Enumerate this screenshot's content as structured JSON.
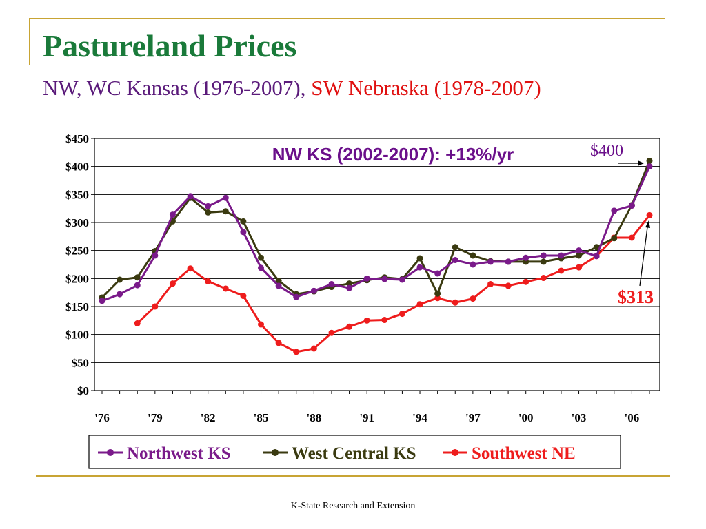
{
  "slide": {
    "title": "Pastureland Prices",
    "subtitle_part1": "NW, WC Kansas (1976-2007),",
    "subtitle_part2": "SW Nebraska (1978-2007)",
    "footer": "K-State Research and Extension"
  },
  "colors": {
    "title": "#1a7a3a",
    "northwest": "#7a1a8a",
    "westcentral": "#3a3a10",
    "southwest": "#ee1c1c",
    "annotation": "#6a0f8a",
    "accent": "#c8a434"
  },
  "chart_data": {
    "type": "line",
    "x": [
      1976,
      1977,
      1978,
      1979,
      1980,
      1981,
      1982,
      1983,
      1984,
      1985,
      1986,
      1987,
      1988,
      1989,
      1990,
      1991,
      1992,
      1993,
      1994,
      1995,
      1996,
      1997,
      1998,
      1999,
      2000,
      2001,
      2002,
      2003,
      2004,
      2005,
      2006,
      2007
    ],
    "x_tick_labels": [
      "'76",
      "'79",
      "'82",
      "'85",
      "'88",
      "'91",
      "'94",
      "'97",
      "'00",
      "'03",
      "'06"
    ],
    "x_tick_values": [
      1976,
      1979,
      1982,
      1985,
      1988,
      1991,
      1994,
      1997,
      2000,
      2003,
      2006
    ],
    "y_tick_labels": [
      "$0",
      "$50",
      "$100",
      "$150",
      "$200",
      "$250",
      "$300",
      "$350",
      "$400",
      "$450"
    ],
    "ylim": [
      0,
      450
    ],
    "grid": true,
    "legend_position": "bottom",
    "series": [
      {
        "name": "Northwest KS",
        "color": "#7a1a8a",
        "values": [
          160,
          172,
          188,
          241,
          314,
          347,
          329,
          344,
          283,
          219,
          187,
          167,
          178,
          190,
          183,
          200,
          199,
          198,
          220,
          209,
          233,
          225,
          230,
          230,
          237,
          241,
          241,
          250,
          240,
          321,
          330,
          400
        ]
      },
      {
        "name": "West Central KS",
        "color": "#3a3a10",
        "values": [
          166,
          198,
          202,
          249,
          302,
          344,
          318,
          320,
          302,
          237,
          196,
          172,
          177,
          185,
          191,
          197,
          202,
          199,
          236,
          173,
          256,
          241,
          231,
          230,
          230,
          230,
          236,
          241,
          256,
          272,
          331,
          410
        ]
      },
      {
        "name": "Southwest NE",
        "color": "#ee1c1c",
        "values": [
          null,
          null,
          120,
          150,
          191,
          218,
          195,
          182,
          169,
          118,
          85,
          69,
          75,
          103,
          114,
          125,
          126,
          137,
          154,
          165,
          157,
          164,
          190,
          187,
          194,
          201,
          214,
          220,
          240,
          273,
          273,
          313
        ]
      }
    ],
    "annotations": {
      "headline": "NW KS (2002-2007): +13%/yr",
      "label_400": "$400",
      "label_313": "$313"
    }
  }
}
